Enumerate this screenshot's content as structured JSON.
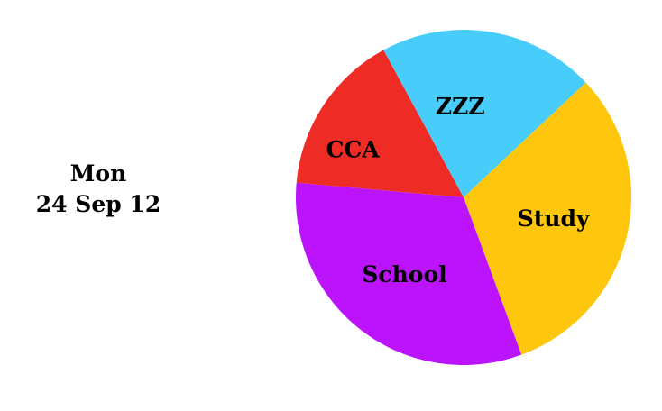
{
  "date": {
    "weekday": "Mon",
    "date": "24 Sep 12"
  },
  "chart_data": {
    "type": "pie",
    "title": "",
    "categories": [
      "CCA",
      "ZZZ",
      "Study",
      "School"
    ],
    "values": [
      15.7,
      20.9,
      31.4,
      32.0
    ],
    "colors": [
      "#ef2b26",
      "#48cdfb",
      "#fec60c",
      "#bb14fc"
    ],
    "legend": "none"
  }
}
